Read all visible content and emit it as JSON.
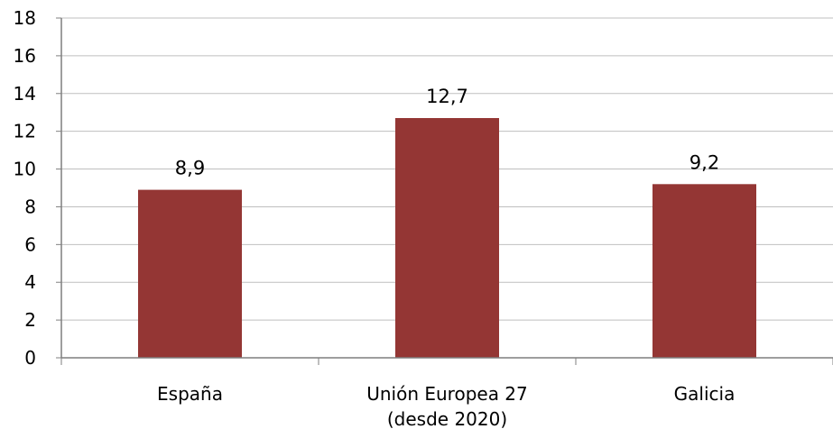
{
  "chart_data": {
    "type": "bar",
    "categories": [
      [
        "España"
      ],
      [
        "Unión Europea 27",
        "(desde 2020)"
      ],
      [
        "Galicia"
      ]
    ],
    "values": [
      8.9,
      12.7,
      9.2
    ],
    "value_labels": [
      "8,9",
      "12,7",
      "9,2"
    ],
    "ylim": [
      0,
      18
    ],
    "yticks": [
      0,
      2,
      4,
      6,
      8,
      10,
      12,
      14,
      16,
      18
    ],
    "ytick_labels": [
      "0",
      "2",
      "4",
      "6",
      "8",
      "10",
      "12",
      "14",
      "16",
      "18"
    ],
    "grid": true,
    "legend": "none",
    "bar_color": "#943634",
    "grid_color": "#bfbfbf",
    "axis_color": "#7f7f7f",
    "title": "",
    "xlabel": "",
    "ylabel": ""
  }
}
